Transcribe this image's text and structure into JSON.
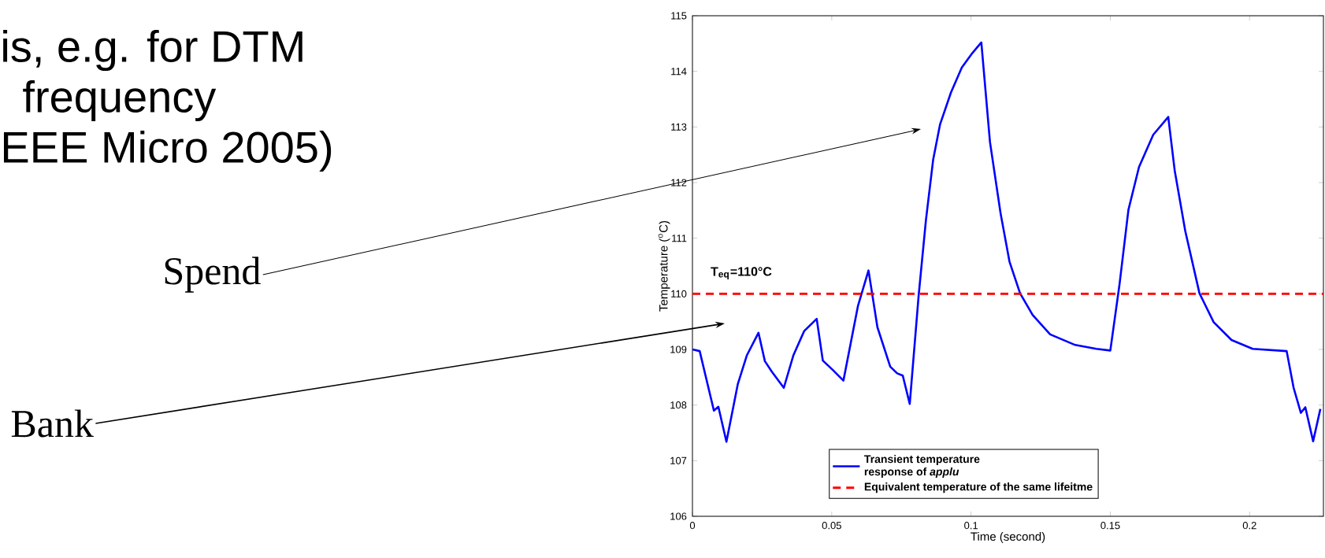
{
  "chart_data": {
    "type": "line",
    "xlabel": "Time (second)",
    "ylabel": "Temperature ($^{o}$C)",
    "xlim": [
      0,
      0.2265
    ],
    "ylim": [
      106,
      115
    ],
    "xticks": [
      0,
      0.05,
      0.1,
      0.15,
      0.2
    ],
    "yticks": [
      106,
      107,
      108,
      109,
      110,
      111,
      112,
      113,
      114,
      115
    ],
    "grid": false,
    "legend": "bottom",
    "marker": "none",
    "series": [
      {
        "name": "Transient temperature response of *applu*",
        "color": "#0000ff",
        "line_style": "solid",
        "x": [
          0,
          0.0026,
          0.0077,
          0.0093,
          0.0122,
          0.0163,
          0.0195,
          0.0237,
          0.026,
          0.0285,
          0.0328,
          0.0362,
          0.0401,
          0.0446,
          0.0468,
          0.0504,
          0.0542,
          0.0594,
          0.0632,
          0.0664,
          0.071,
          0.0735,
          0.0755,
          0.078,
          0.0812,
          0.0838,
          0.0864,
          0.0889,
          0.0928,
          0.0967,
          0.1005,
          0.1037,
          0.1068,
          0.1106,
          0.1138,
          0.1176,
          0.1221,
          0.1284,
          0.1374,
          0.145,
          0.15,
          0.1533,
          0.1565,
          0.1603,
          0.1654,
          0.1708,
          0.1731,
          0.1769,
          0.182,
          0.1871,
          0.1935,
          0.2011,
          0.2133,
          0.2158,
          0.2184,
          0.22,
          0.2228,
          0.2254
        ],
        "values": [
          109.0,
          108.97,
          107.9,
          107.97,
          107.34,
          108.38,
          108.89,
          109.3,
          108.79,
          108.6,
          108.31,
          108.89,
          109.33,
          109.55,
          108.8,
          108.63,
          108.44,
          109.78,
          110.42,
          109.4,
          108.69,
          108.57,
          108.53,
          108.02,
          109.97,
          111.32,
          112.41,
          113.05,
          113.62,
          114.07,
          114.33,
          114.52,
          112.73,
          111.45,
          110.58,
          110.01,
          109.62,
          109.27,
          109.08,
          109.01,
          108.98,
          110.17,
          111.51,
          112.28,
          112.86,
          113.18,
          112.22,
          111.13,
          110.01,
          109.49,
          109.17,
          109.01,
          108.97,
          108.31,
          107.86,
          107.96,
          107.35,
          107.93
        ]
      },
      {
        "name": "Equivalent temperature of the same lifeitme",
        "color": "#ff0000",
        "line_style": "dashed",
        "x": [
          0,
          0.2265
        ],
        "values": [
          110,
          110
        ]
      }
    ],
    "annotations": [
      "is, e.g. for DTM",
      "frequency",
      "EEE Micro 2005)",
      "Spend",
      "Bank",
      {
        "text": "T$_{eq}$=110°C",
        "x": 0.0064,
        "y": 110
      }
    ]
  }
}
